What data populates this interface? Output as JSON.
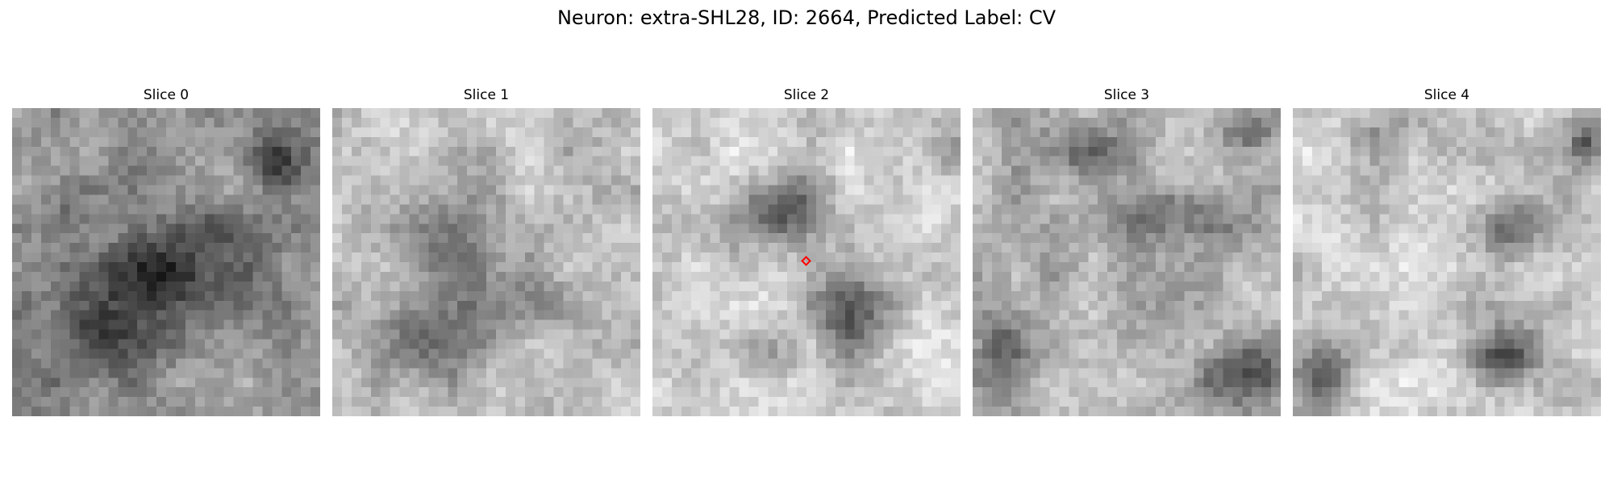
{
  "figure": {
    "title": "Neuron: extra-SHL28, ID: 2664, Predicted Label: CV"
  },
  "slices": [
    {
      "title": "Slice 0"
    },
    {
      "title": "Slice 1"
    },
    {
      "title": "Slice 2"
    },
    {
      "title": "Slice 3"
    },
    {
      "title": "Slice 4"
    }
  ],
  "marker": {
    "slice_index": 2,
    "color": "#ff0000",
    "shape": "diamond"
  },
  "image_style": {
    "colormap": "grayscale",
    "grid_size": 32
  }
}
